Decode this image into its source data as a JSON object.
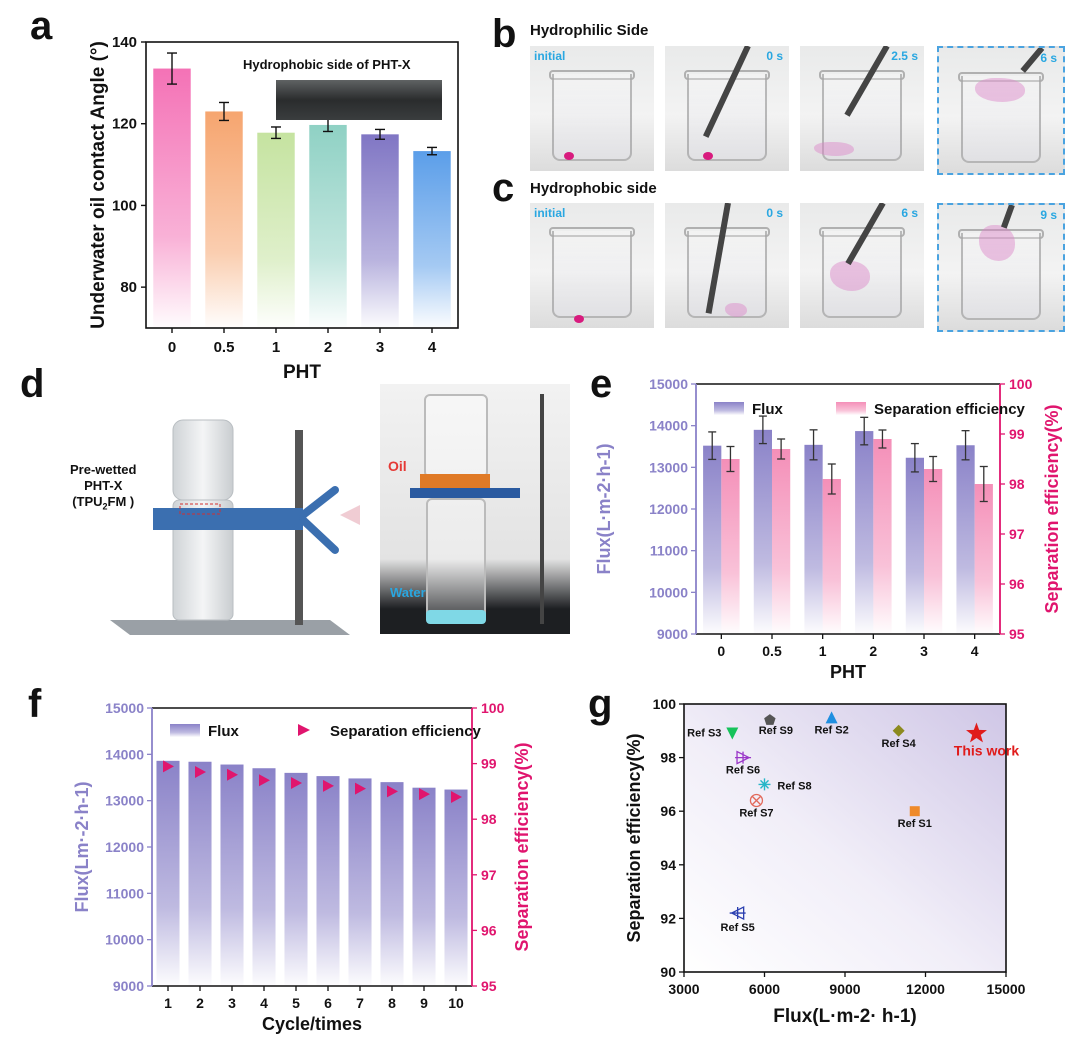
{
  "panels": {
    "a": "a",
    "b": "b",
    "c": "c",
    "d": "d",
    "e": "e",
    "f": "f",
    "g": "g"
  },
  "panel_a": {
    "inset_label": "Hydrophobic side of PHT-X",
    "colors": [
      "#f472b6",
      "#f6a56f",
      "#c5e3a0",
      "#8fd1c4",
      "#8076c4",
      "#5b9ee9"
    ]
  },
  "panel_b": {
    "title": "Hydrophilic Side",
    "tags": [
      "initial",
      "0 s",
      "2.5 s",
      "6 s"
    ]
  },
  "panel_c": {
    "title": "Hydrophobic side",
    "tags": [
      "initial",
      "0 s",
      "6 s",
      "9 s"
    ]
  },
  "panel_d": {
    "label_membrane_lines": [
      "Pre-wetted",
      "PHT-X"
    ],
    "label_tpu_main": "(TPU",
    "label_tpu_sub": "2",
    "label_tpu_end": "FM )",
    "label_oil": "Oil",
    "label_water": "Water"
  },
  "chart_data": [
    {
      "id": "a",
      "type": "bar",
      "categories": [
        "0",
        "0.5",
        "1",
        "2",
        "3",
        "4"
      ],
      "values": [
        133.5,
        123.0,
        117.8,
        119.7,
        117.4,
        113.3
      ],
      "errors": [
        3.8,
        2.2,
        1.4,
        1.6,
        1.2,
        0.9
      ],
      "xlabel": "PHT",
      "ylabel": "Underwater oil contact Angle (°)",
      "ylim": [
        70,
        140
      ],
      "yticks": [
        80,
        100,
        120,
        140
      ]
    },
    {
      "id": "e",
      "type": "bar",
      "categories": [
        "0",
        "0.5",
        "1",
        "2",
        "3",
        "4"
      ],
      "xlabel": "PHT",
      "ylabel_left": "Flux(L·m-2·h-1)",
      "ylabel_right": "Separation efficiency(%)",
      "ylim_left": [
        9000,
        15000
      ],
      "yticks_left": [
        9000,
        10000,
        11000,
        12000,
        13000,
        14000,
        15000
      ],
      "ylim_right": [
        95,
        100
      ],
      "yticks_right": [
        95,
        96,
        97,
        98,
        99,
        100
      ],
      "legend": [
        "Flux",
        "Separation efficiency"
      ],
      "series": [
        {
          "name": "Flux",
          "axis": "left",
          "color": "#8a82c8",
          "values": [
            13520,
            13900,
            13540,
            13870,
            13230,
            13530
          ],
          "errors": [
            330,
            330,
            360,
            330,
            340,
            350
          ]
        },
        {
          "name": "Separation efficiency",
          "axis": "right",
          "color": "#f48fb8",
          "values": [
            98.5,
            98.7,
            98.1,
            98.9,
            98.3,
            98.0
          ],
          "errors": [
            0.25,
            0.2,
            0.3,
            0.18,
            0.25,
            0.35
          ]
        }
      ]
    },
    {
      "id": "f",
      "type": "bar",
      "categories": [
        "1",
        "2",
        "3",
        "4",
        "5",
        "6",
        "7",
        "8",
        "9",
        "10"
      ],
      "xlabel": "Cycle/times",
      "ylabel_left": "Flux(Lm·-2·h-1)",
      "ylabel_right": "Separation efficiency(%)",
      "ylim_left": [
        9000,
        15000
      ],
      "yticks_left": [
        9000,
        10000,
        11000,
        12000,
        13000,
        14000,
        15000
      ],
      "ylim_right": [
        95,
        100
      ],
      "yticks_right": [
        95,
        96,
        97,
        98,
        99,
        100
      ],
      "legend": [
        "Flux",
        "Separation efficiency"
      ],
      "series": [
        {
          "name": "Flux",
          "axis": "left",
          "color": "#8a82c8",
          "values": [
            13860,
            13840,
            13780,
            13700,
            13600,
            13530,
            13480,
            13400,
            13280,
            13240
          ]
        },
        {
          "name": "Separation efficiency",
          "axis": "right",
          "color": "#e0156e",
          "values": [
            98.95,
            98.85,
            98.8,
            98.7,
            98.65,
            98.6,
            98.55,
            98.5,
            98.45,
            98.4
          ]
        }
      ]
    },
    {
      "id": "g",
      "type": "scatter",
      "xlabel": "Flux(L·m-2· h-1)",
      "ylabel": "Separation efficiency(%)",
      "xlim": [
        3000,
        15000
      ],
      "xticks": [
        3000,
        6000,
        9000,
        12000,
        15000
      ],
      "ylim": [
        90,
        100
      ],
      "yticks": [
        90,
        92,
        94,
        96,
        98,
        100
      ],
      "points": [
        {
          "label": "Ref S3",
          "x": 4800,
          "y": 98.9,
          "marker": "tri-down",
          "color": "#16c25a"
        },
        {
          "label": "Ref S9",
          "x": 6200,
          "y": 99.4,
          "marker": "pentagon",
          "color": "#555555"
        },
        {
          "label": "Ref S2",
          "x": 8500,
          "y": 99.5,
          "marker": "tri-up",
          "color": "#1f8fe0"
        },
        {
          "label": "Ref S4",
          "x": 11000,
          "y": 99.0,
          "marker": "diamond",
          "color": "#8c8a1f"
        },
        {
          "label": "This work",
          "x": 13900,
          "y": 98.9,
          "marker": "star",
          "color": "#e01b1b"
        },
        {
          "label": "Ref S6",
          "x": 5200,
          "y": 98.0,
          "marker": "tri-right",
          "color": "#9a36c8"
        },
        {
          "label": "Ref S8",
          "x": 6000,
          "y": 97.0,
          "marker": "asterisk",
          "color": "#26b6c8"
        },
        {
          "label": "Ref S7",
          "x": 5700,
          "y": 96.4,
          "marker": "circ-x",
          "color": "#e2695a"
        },
        {
          "label": "Ref S1",
          "x": 11600,
          "y": 96.0,
          "marker": "square",
          "color": "#ef8a2a"
        },
        {
          "label": "Ref S5",
          "x": 5000,
          "y": 92.2,
          "marker": "tri-left",
          "color": "#2b3fb0"
        }
      ]
    }
  ]
}
